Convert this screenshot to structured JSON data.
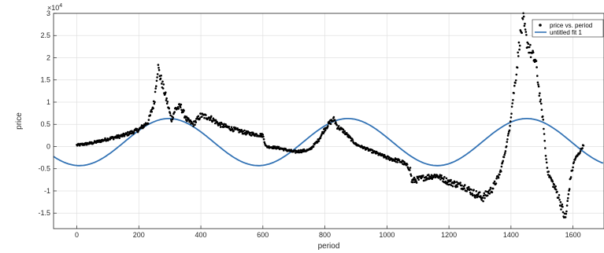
{
  "chart_data": {
    "type": "scatter",
    "xlabel": "period",
    "ylabel": "price",
    "xlim": [
      -75,
      1700
    ],
    "ylim": [
      -18500,
      30000
    ],
    "y_exponent_label": "×10",
    "y_exponent_power": "4",
    "xticks": [
      0,
      200,
      400,
      600,
      800,
      1000,
      1200,
      1400,
      1600
    ],
    "xtick_labels": [
      "0",
      "200",
      "400",
      "600",
      "800",
      "1000",
      "1200",
      "1400",
      "1600"
    ],
    "yticks": [
      -15000,
      -10000,
      -5000,
      0,
      5000,
      10000,
      15000,
      20000,
      25000,
      30000
    ],
    "ytick_labels": [
      "-1.5",
      "-1",
      "-0.5",
      "0",
      "0.5",
      "1",
      "1.5",
      "2",
      "2.5",
      "3"
    ],
    "grid": true,
    "legend_position": "top-right",
    "series": [
      {
        "name": "price vs. period",
        "kind": "points",
        "color": "#000000",
        "keypoints": [
          [
            0,
            300
          ],
          [
            50,
            800
          ],
          [
            100,
            1700
          ],
          [
            150,
            2500
          ],
          [
            200,
            3800
          ],
          [
            230,
            5500
          ],
          [
            250,
            10000
          ],
          [
            258,
            16000
          ],
          [
            262,
            17800
          ],
          [
            268,
            16000
          ],
          [
            280,
            13000
          ],
          [
            295,
            9000
          ],
          [
            305,
            6000
          ],
          [
            318,
            8500
          ],
          [
            335,
            9000
          ],
          [
            355,
            6000
          ],
          [
            375,
            5000
          ],
          [
            400,
            7000
          ],
          [
            430,
            6500
          ],
          [
            460,
            5000
          ],
          [
            500,
            4000
          ],
          [
            550,
            3000
          ],
          [
            600,
            2500
          ],
          [
            610,
            0
          ],
          [
            650,
            -300
          ],
          [
            700,
            -1200
          ],
          [
            750,
            -800
          ],
          [
            780,
            1500
          ],
          [
            800,
            4000
          ],
          [
            818,
            5500
          ],
          [
            830,
            6200
          ],
          [
            840,
            4500
          ],
          [
            860,
            3500
          ],
          [
            880,
            2000
          ],
          [
            900,
            500
          ],
          [
            950,
            -1000
          ],
          [
            1000,
            -2500
          ],
          [
            1050,
            -3500
          ],
          [
            1075,
            -5000
          ],
          [
            1080,
            -7800
          ],
          [
            1120,
            -7000
          ],
          [
            1160,
            -6500
          ],
          [
            1200,
            -8000
          ],
          [
            1250,
            -9000
          ],
          [
            1280,
            -10500
          ],
          [
            1310,
            -11500
          ],
          [
            1340,
            -9500
          ],
          [
            1365,
            -6000
          ],
          [
            1385,
            0
          ],
          [
            1395,
            4000
          ],
          [
            1405,
            10000
          ],
          [
            1418,
            17000
          ],
          [
            1428,
            24000
          ],
          [
            1440,
            28200
          ],
          [
            1450,
            24000
          ],
          [
            1465,
            21000
          ],
          [
            1480,
            19000
          ],
          [
            1490,
            13000
          ],
          [
            1505,
            5000
          ],
          [
            1512,
            -2000
          ],
          [
            1520,
            -6000
          ],
          [
            1540,
            -9000
          ],
          [
            1555,
            -11500
          ],
          [
            1575,
            -16500
          ],
          [
            1582,
            -13000
          ],
          [
            1592,
            -7000
          ],
          [
            1605,
            -3000
          ],
          [
            1620,
            -1500
          ],
          [
            1635,
            500
          ]
        ]
      },
      {
        "name": "untitled fit 1",
        "kind": "line",
        "color": "#3373b5",
        "amplitude": 5300,
        "offset": 1000,
        "period": 577,
        "peak_x": 297
      }
    ]
  }
}
